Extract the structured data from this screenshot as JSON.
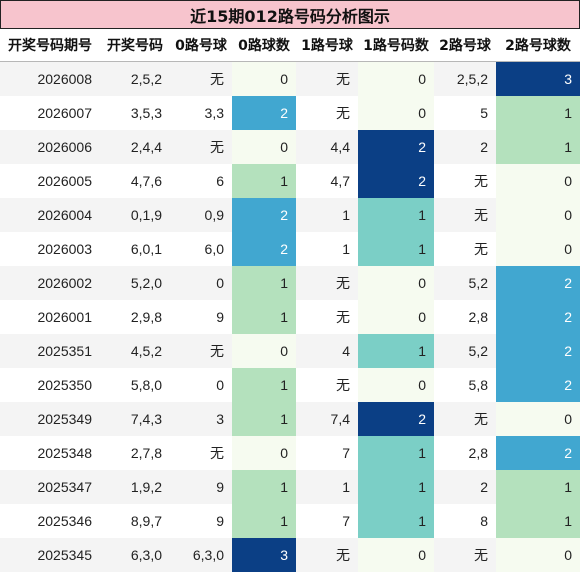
{
  "title": "近15期012路号码分析图示",
  "headers": [
    "开奖号码期号",
    "开奖号码",
    "0路号球",
    "0路球数",
    "1路号球",
    "1路号码数",
    "2路号球",
    "2路号球数"
  ],
  "rows": [
    {
      "issue": "2026008",
      "numbers": "2,5,2",
      "r0": "无",
      "c0": "0",
      "r1": "无",
      "c1": "0",
      "r2": "2,5,2",
      "c2": "3"
    },
    {
      "issue": "2026007",
      "numbers": "3,5,3",
      "r0": "3,3",
      "c0": "2",
      "r1": "无",
      "c1": "0",
      "r2": "5",
      "c2": "1"
    },
    {
      "issue": "2026006",
      "numbers": "2,4,4",
      "r0": "无",
      "c0": "0",
      "r1": "4,4",
      "c1": "2",
      "r2": "2",
      "c2": "1"
    },
    {
      "issue": "2026005",
      "numbers": "4,7,6",
      "r0": "6",
      "c0": "1",
      "r1": "4,7",
      "c1": "2",
      "r2": "无",
      "c2": "0"
    },
    {
      "issue": "2026004",
      "numbers": "0,1,9",
      "r0": "0,9",
      "c0": "2",
      "r1": "1",
      "c1": "1",
      "r2": "无",
      "c2": "0"
    },
    {
      "issue": "2026003",
      "numbers": "6,0,1",
      "r0": "6,0",
      "c0": "2",
      "r1": "1",
      "c1": "1",
      "r2": "无",
      "c2": "0"
    },
    {
      "issue": "2026002",
      "numbers": "5,2,0",
      "r0": "0",
      "c0": "1",
      "r1": "无",
      "c1": "0",
      "r2": "5,2",
      "c2": "2"
    },
    {
      "issue": "2026001",
      "numbers": "2,9,8",
      "r0": "9",
      "c0": "1",
      "r1": "无",
      "c1": "0",
      "r2": "2,8",
      "c2": "2"
    },
    {
      "issue": "2025351",
      "numbers": "4,5,2",
      "r0": "无",
      "c0": "0",
      "r1": "4",
      "c1": "1",
      "r2": "5,2",
      "c2": "2"
    },
    {
      "issue": "2025350",
      "numbers": "5,8,0",
      "r0": "0",
      "c0": "1",
      "r1": "无",
      "c1": "0",
      "r2": "5,8",
      "c2": "2"
    },
    {
      "issue": "2025349",
      "numbers": "7,4,3",
      "r0": "3",
      "c0": "1",
      "r1": "7,4",
      "c1": "2",
      "r2": "无",
      "c2": "0"
    },
    {
      "issue": "2025348",
      "numbers": "2,7,8",
      "r0": "无",
      "c0": "0",
      "r1": "7",
      "c1": "1",
      "r2": "2,8",
      "c2": "2"
    },
    {
      "issue": "2025347",
      "numbers": "1,9,2",
      "r0": "9",
      "c0": "1",
      "r1": "1",
      "c1": "1",
      "r2": "2",
      "c2": "1"
    },
    {
      "issue": "2025346",
      "numbers": "8,9,7",
      "r0": "9",
      "c0": "1",
      "r1": "7",
      "c1": "1",
      "r2": "8",
      "c2": "1"
    },
    {
      "issue": "2025345",
      "numbers": "6,3,0",
      "r0": "6,3,0",
      "c0": "3",
      "r1": "无",
      "c1": "0",
      "r2": "无",
      "c2": "0"
    }
  ]
}
